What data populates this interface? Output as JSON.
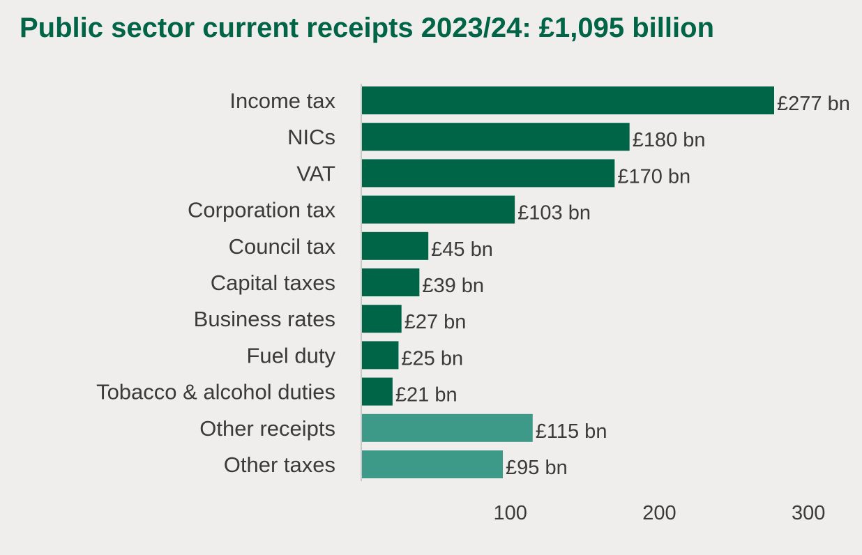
{
  "chart_data": {
    "type": "bar",
    "orientation": "horizontal",
    "title": "Public sector current receipts 2023/24: £1,095 billion",
    "categories": [
      "Income tax",
      "NICs",
      "VAT",
      "Corporation tax",
      "Council tax",
      "Capital taxes",
      "Business rates",
      "Fuel duty",
      "Tobacco & alcohol duties",
      "Other receipts",
      "Other taxes"
    ],
    "values": [
      277,
      180,
      170,
      103,
      45,
      39,
      27,
      25,
      21,
      115,
      95
    ],
    "value_labels": [
      "£277 bn",
      "£180 bn",
      "£170 bn",
      "£103 bn",
      "£45 bn",
      "£39 bn",
      "£27 bn",
      "£25 bn",
      "£21 bn",
      "£115 bn",
      "£95 bn"
    ],
    "bar_colors": [
      "#006446",
      "#006446",
      "#006446",
      "#006446",
      "#006446",
      "#006446",
      "#006446",
      "#006446",
      "#006446",
      "#3d9a88",
      "#3d9a88"
    ],
    "xlim": [
      0,
      300
    ],
    "xticks": [
      100,
      200,
      300
    ],
    "grid": false,
    "xlabel": "",
    "ylabel": ""
  },
  "colors": {
    "title": "#006446",
    "background": "#efeeec",
    "axis_line": "#c8c8c8",
    "text": "#3a3a3a"
  }
}
